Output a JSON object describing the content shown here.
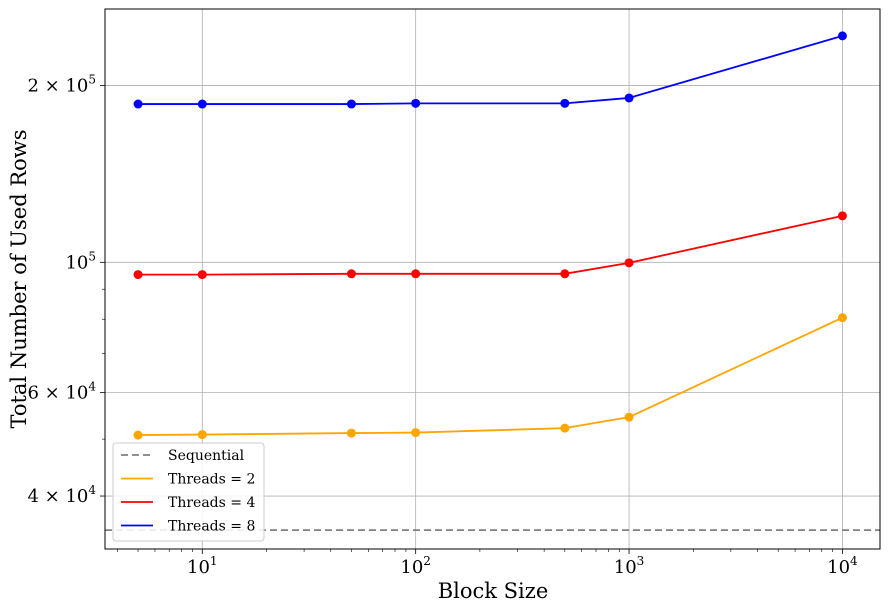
{
  "chart_data": {
    "type": "line",
    "title": "",
    "xlabel": "Block Size",
    "ylabel": "Total Number of Used Rows",
    "xscale": "log",
    "yscale": "log",
    "xlim": [
      3.5,
      15000
    ],
    "ylim": [
      32500,
      270000
    ],
    "grid": true,
    "legend_position": "lower-left",
    "x_ticks": [
      {
        "value": 10,
        "base": "10",
        "exp": "1"
      },
      {
        "value": 100,
        "base": "10",
        "exp": "2"
      },
      {
        "value": 1000,
        "base": "10",
        "exp": "3"
      },
      {
        "value": 10000,
        "base": "10",
        "exp": "4"
      }
    ],
    "y_ticks": [
      {
        "value": 40000,
        "mantissa": "4 × 10",
        "exp": "4"
      },
      {
        "value": 60000,
        "mantissa": "6 × 10",
        "exp": "4"
      },
      {
        "value": 100000,
        "mantissa": "10",
        "exp": "5"
      },
      {
        "value": 200000,
        "mantissa": "2 × 10",
        "exp": "5"
      }
    ],
    "x": [
      5,
      10,
      50,
      100,
      500,
      1000,
      10000
    ],
    "series": [
      {
        "name": "Sequential",
        "style": "dashed",
        "color": "#808080",
        "constant": 35000
      },
      {
        "name": "Threads = 2",
        "color": "#FFA500",
        "values": [
          50800,
          50900,
          51200,
          51300,
          52200,
          54500,
          80500
        ]
      },
      {
        "name": "Threads = 4",
        "color": "#FF0000",
        "values": [
          95300,
          95300,
          95600,
          95600,
          95600,
          99800,
          120000
        ]
      },
      {
        "name": "Threads = 8",
        "color": "#0000FF",
        "values": [
          186000,
          186000,
          186000,
          186500,
          186500,
          190500,
          243000
        ]
      }
    ]
  }
}
